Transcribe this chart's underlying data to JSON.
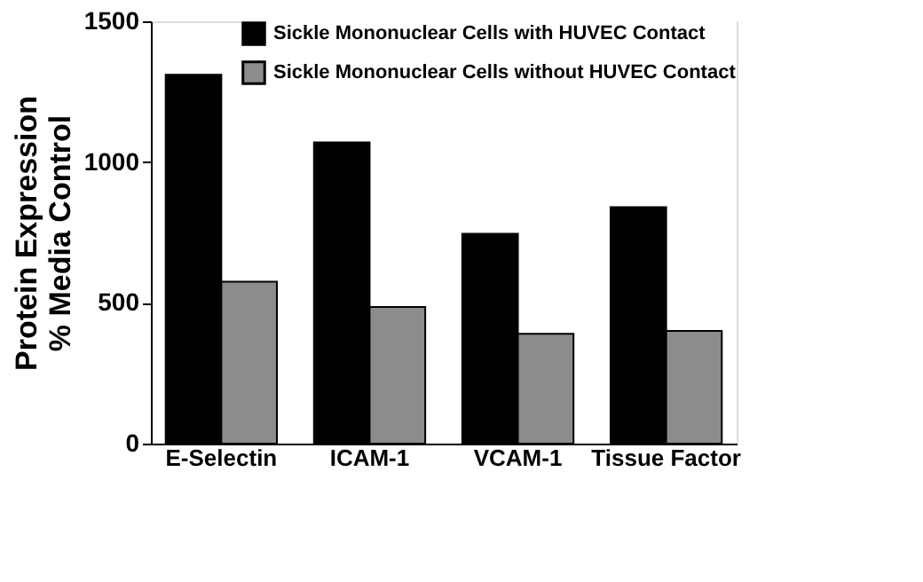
{
  "chart_data": {
    "type": "bar",
    "ylabel": "Protein Expression\n% Media Control",
    "categories": [
      "E-Selectin",
      "ICAM-1",
      "VCAM-1",
      "Tissue Factor"
    ],
    "series": [
      {
        "name": "Sickle Mononuclear Cells with HUVEC Contact",
        "color": "#000000",
        "values": [
          1310,
          1070,
          745,
          840
        ]
      },
      {
        "name": "Sickle Mononuclear Cells without HUVEC Contact",
        "color": "#8c8c8c",
        "values": [
          575,
          485,
          390,
          400
        ]
      }
    ],
    "ylim": [
      0,
      1500
    ],
    "yticks": [
      0,
      500,
      1000,
      1500
    ],
    "grid": false,
    "legend": "top right"
  }
}
